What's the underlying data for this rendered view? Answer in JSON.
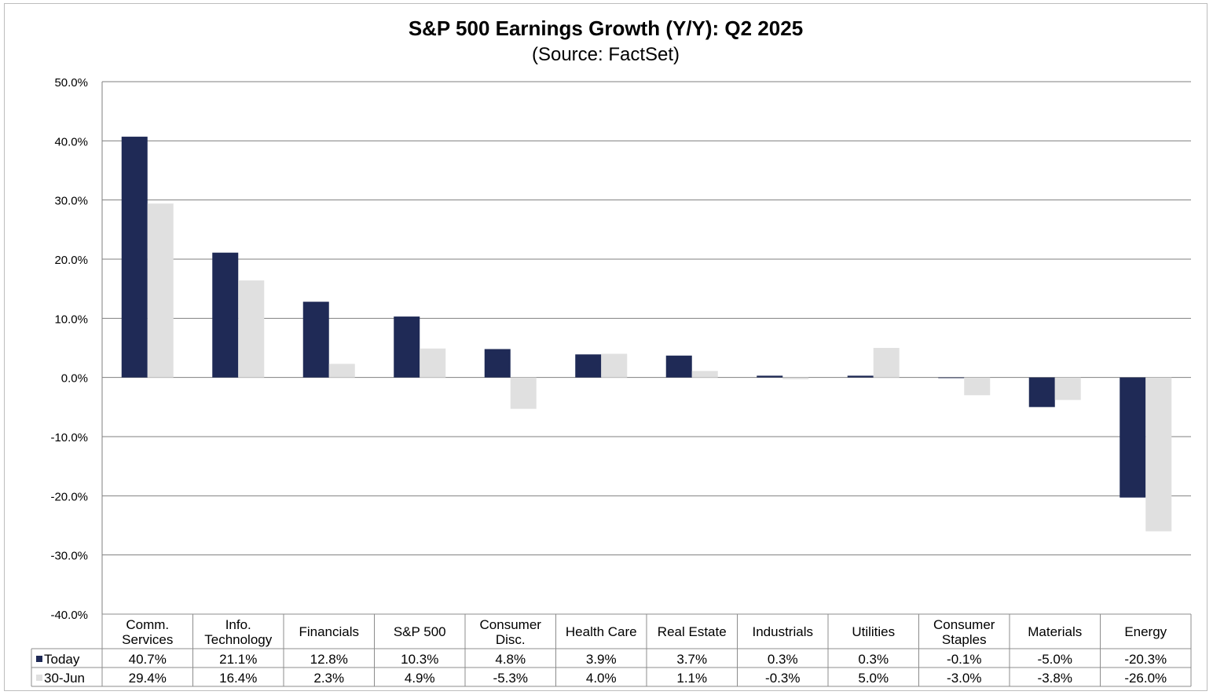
{
  "chart_data": {
    "type": "bar",
    "title": "S&P 500 Earnings Growth (Y/Y): Q2 2025",
    "subtitle": "(Source: FactSet)",
    "xlabel": "",
    "ylabel": "",
    "ylim": [
      -40,
      50
    ],
    "y_ticks": [
      50,
      40,
      30,
      20,
      10,
      0,
      -10,
      -20,
      -30,
      -40
    ],
    "y_tick_labels": [
      "50.0%",
      "40.0%",
      "30.0%",
      "20.0%",
      "10.0%",
      "0.0%",
      "-10.0%",
      "-20.0%",
      "-30.0%",
      "-40.0%"
    ],
    "grid": true,
    "legend_placement": "data-table-left",
    "categories": [
      [
        "Comm.",
        "Services"
      ],
      [
        "Info.",
        "Technology"
      ],
      [
        "Financials"
      ],
      [
        "S&P 500"
      ],
      [
        "Consumer",
        "Disc."
      ],
      [
        "Health Care"
      ],
      [
        "Real Estate"
      ],
      [
        "Industrials"
      ],
      [
        "Utilities"
      ],
      [
        "Consumer",
        "Staples"
      ],
      [
        "Materials"
      ],
      [
        "Energy"
      ]
    ],
    "series": [
      {
        "name": "Today",
        "color": "#1f2a56",
        "values": [
          40.7,
          21.1,
          12.8,
          10.3,
          4.8,
          3.9,
          3.7,
          0.3,
          0.3,
          -0.1,
          -5.0,
          -20.3
        ],
        "labels": [
          "40.7%",
          "21.1%",
          "12.8%",
          "10.3%",
          "4.8%",
          "3.9%",
          "3.7%",
          "0.3%",
          "0.3%",
          "-0.1%",
          "-5.0%",
          "-20.3%"
        ]
      },
      {
        "name": "30-Jun",
        "color": "#e0e0e0",
        "values": [
          29.4,
          16.4,
          2.3,
          4.9,
          -5.3,
          4.0,
          1.1,
          -0.3,
          5.0,
          -3.0,
          -3.8,
          -26.0
        ],
        "labels": [
          "29.4%",
          "16.4%",
          "2.3%",
          "4.9%",
          "-5.3%",
          "4.0%",
          "1.1%",
          "-0.3%",
          "5.0%",
          "-3.0%",
          "-3.8%",
          "-26.0%"
        ]
      }
    ]
  }
}
